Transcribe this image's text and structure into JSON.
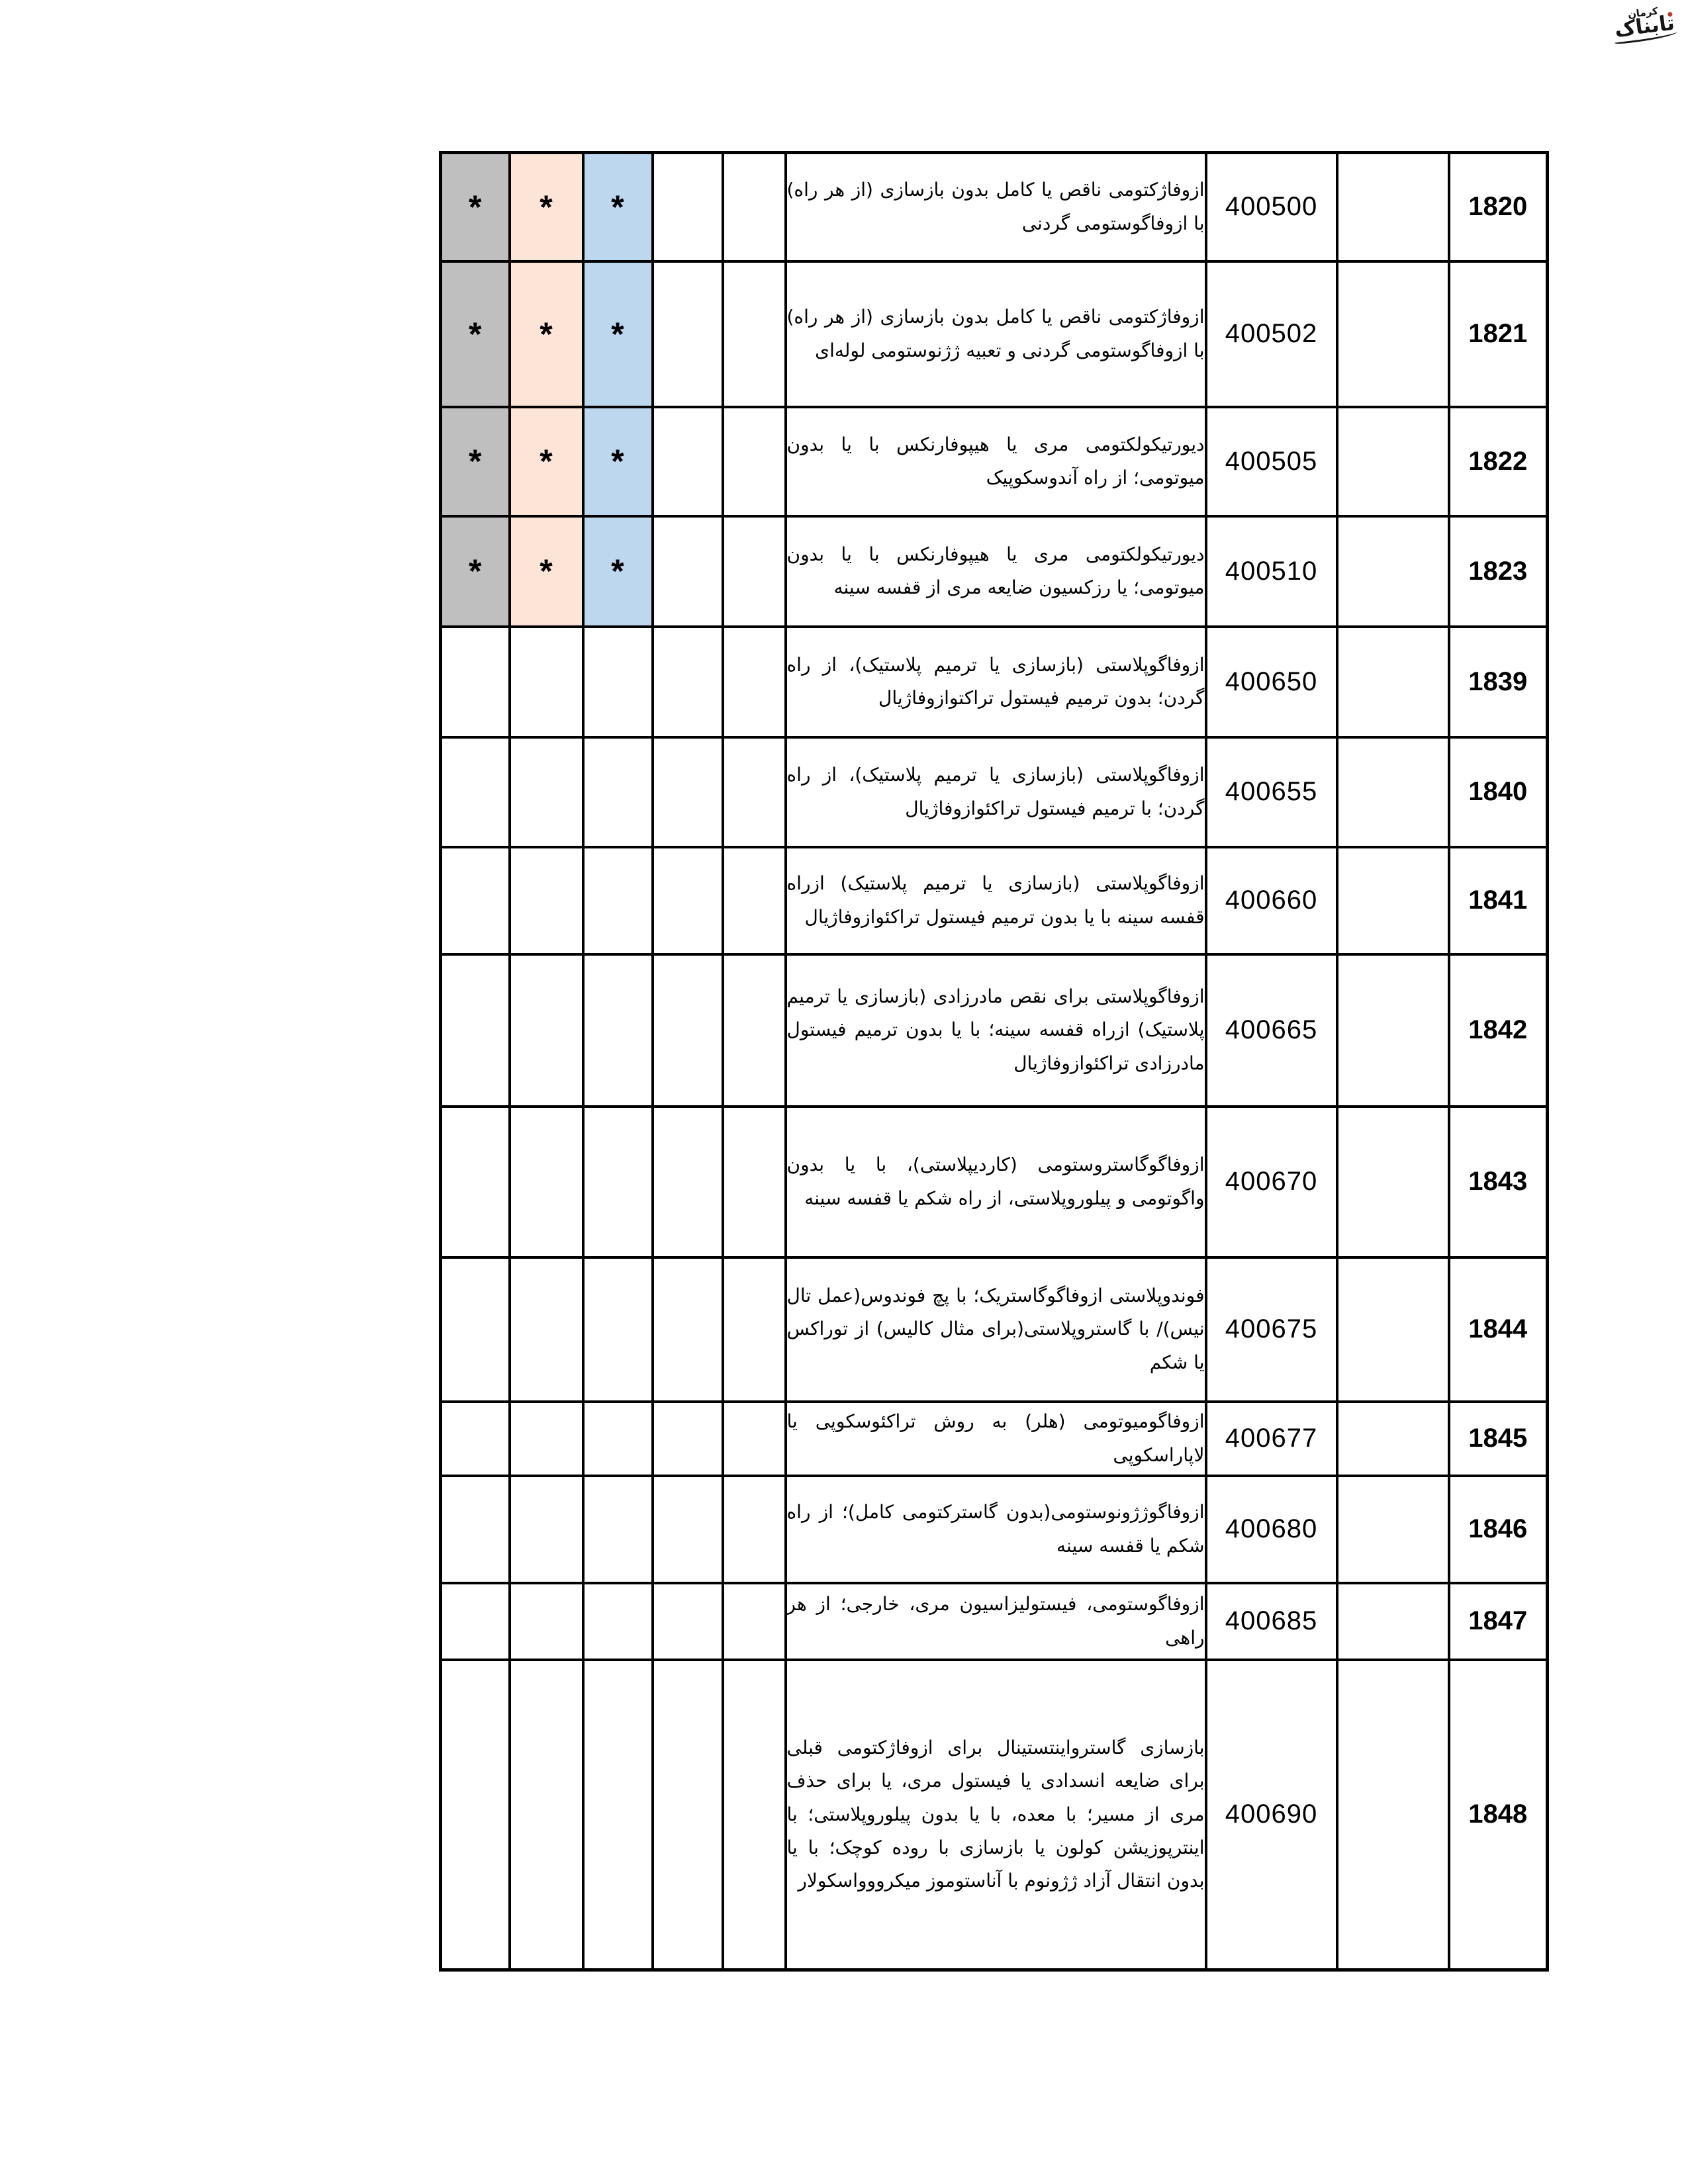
{
  "logo": {
    "title": "تابناک",
    "subtitle": "کرمان",
    "accent_color": "#c0392b"
  },
  "table": {
    "colors": {
      "gray": "#bfbfbf",
      "peach": "#fce4d6",
      "blue": "#bdd7ee",
      "border": "#000000"
    },
    "star_symbol": "*",
    "rows": [
      {
        "no": "1820",
        "code": "400500",
        "star": "*",
        "description": "ازوفاژکتومی ناقص یا کامل بدون بازسازی (از هر راه) با ازوفاگوستومی گردنی"
      },
      {
        "no": "1821",
        "code": "400502",
        "star": "*",
        "description": "ازوفاژکتومی ناقص یا کامل بدون بازسازی (از هر راه) با ازوفاگوستومی گردنی و تعبیه ژژنوستومی لوله‌ای"
      },
      {
        "no": "1822",
        "code": "400505",
        "star": "*",
        "description": "دیورتیکولکتومی مری یا هیپوفارنکس با یا بدون میوتومی؛ از راه آندوسکوپیک"
      },
      {
        "no": "1823",
        "code": "400510",
        "star": "*",
        "description": "دیورتیکولکتومی مری یا هیپوفارنکس با یا بدون میوتومی؛ یا رزکسیون ضایعه مری از قفسه سینه"
      },
      {
        "no": "1839",
        "code": "400650",
        "star": "",
        "description": "ازوفاگوپلاستی (بازسازی یا ترمیم پلاستیک)، از راه گردن؛ بدون ترمیم فیستول تراکتوازوفاژیال"
      },
      {
        "no": "1840",
        "code": "400655",
        "star": "",
        "description": "ازوفاگوپلاستی (بازسازی یا ترمیم پلاستیک)، از راه گردن؛ با ترمیم فیستول تراکئوازوفاژیال"
      },
      {
        "no": "1841",
        "code": "400660",
        "star": "",
        "description": "ازوفاگوپلاستی (بازسازی یا ترمیم پلاستیک) ازراه قفسه سینه با یا بدون ترمیم فیستول تراکئوازوفاژیال"
      },
      {
        "no": "1842",
        "code": "400665",
        "star": "",
        "description": "ازوفاگوپلاستی برای نقص مادرزادی (بازسازی یا ترمیم پلاستیک) ازراه قفسه سینه؛ با یا بدون ترمیم فیستول مادرزادی تراکئوازوفاژیال"
      },
      {
        "no": "1843",
        "code": "400670",
        "star": "",
        "description": "ازوفاگوگاستروستومی (کاردیپلاستی)، با یا بدون واگوتومی و پیلوروپلاستی، از راه شکم یا قفسه سینه"
      },
      {
        "no": "1844",
        "code": "400675",
        "star": "",
        "description": "فوندوپلاستی ازوفاگوگاستریک؛ با پچ فوندوس(عمل تال نیس)/ با گاستروپلاستی(برای مثال کالیس) از توراکس یا شکم"
      },
      {
        "no": "1845",
        "code": "400677",
        "star": "",
        "description": "ازوفاگومیوتومی (هلر) به روش تراکئوسکوپی یا لاپاراسکوپی"
      },
      {
        "no": "1846",
        "code": "400680",
        "star": "",
        "description": "ازوفاگوژژونوستومی(بدون گاسترکتومی کامل)؛ از راه شکم یا قفسه سینه"
      },
      {
        "no": "1847",
        "code": "400685",
        "star": "",
        "description": "ازوفاگوستومی، فیستولیزاسیون مری، خارجی؛ از هر راهی"
      },
      {
        "no": "1848",
        "code": "400690",
        "star": "",
        "description": "بازسازی گاسترواینتستینال برای ازوفاژکتومی قبلی برای ضایعه انسدادی یا فیستول مری، یا برای حذف مری از مسیر؛ با معده، با یا بدون پیلوروپلاستی؛ با اینترپوزیشن کولون یا بازسازی با روده کوچک؛ با یا بدون انتقال آزاد ژژونوم با آناستوموز میکرووواسکولار"
      }
    ]
  }
}
